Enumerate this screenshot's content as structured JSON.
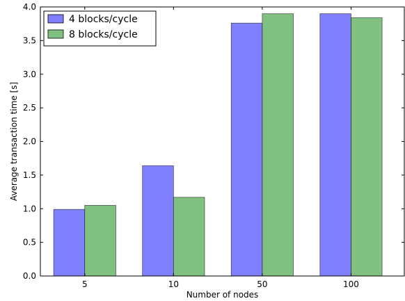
{
  "chart_data": {
    "type": "bar",
    "categories": [
      "5",
      "10",
      "50",
      "100"
    ],
    "series": [
      {
        "name": "4 blocks/cycle",
        "color": "#8080ff",
        "values": [
          0.99,
          1.64,
          3.76,
          3.9
        ]
      },
      {
        "name": "8 blocks/cycle",
        "color": "#80c080",
        "values": [
          1.05,
          1.17,
          3.9,
          3.84
        ]
      }
    ],
    "xlabel": "Number of nodes",
    "ylabel": "Average transaction time [s]",
    "ylim": [
      0.0,
      4.0
    ],
    "yticks": [
      "0.0",
      "0.5",
      "1.0",
      "1.5",
      "2.0",
      "2.5",
      "3.0",
      "3.5",
      "4.0"
    ],
    "grid": false,
    "legend_position": "top-left"
  }
}
